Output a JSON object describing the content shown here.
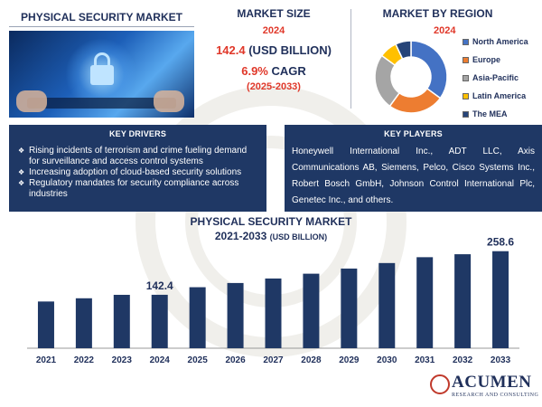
{
  "header": {
    "left_title": "PHYSICAL SECURITY MARKET",
    "market_size_title": "MARKET SIZE",
    "market_size_year": "2024",
    "market_size_value": "142.4",
    "market_size_unit": " (USD BILLION)",
    "cagr_value": "6.9%",
    "cagr_label": " CAGR",
    "cagr_period": "(2025-2033)",
    "region_title": "MARKET BY REGION",
    "region_year": "2024"
  },
  "region_pie": {
    "type": "pie",
    "labels": [
      "North America",
      "Europe",
      "Asia-Pacific",
      "Latin America",
      "The MEA"
    ],
    "values": [
      35,
      25,
      25,
      8,
      7
    ],
    "colors": [
      "#4472c4",
      "#ed7d31",
      "#a5a5a5",
      "#ffc000",
      "#264478"
    ]
  },
  "key_drivers": {
    "title": "KEY DRIVERS",
    "items": [
      "Rising incidents of terrorism and crime fueling demand for surveillance and access control systems",
      "Increasing adoption of cloud-based security solutions",
      "Regulatory mandates for security compliance across industries"
    ]
  },
  "key_players": {
    "title": "KEY PLAYERS",
    "text": "Honeywell International Inc., ADT LLC, Axis Communications AB, Siemens, Pelco, Cisco Systems Inc., Robert Bosch GmbH, Johnson Control International Plc, Genetec Inc., and others."
  },
  "chart_title": {
    "line1": "PHYSICAL SECURITY MARKET",
    "line2": "2021-2033 ",
    "unit": "(USD BILLION)"
  },
  "chart_data": {
    "type": "bar",
    "categories": [
      "2021",
      "2022",
      "2023",
      "2024",
      "2025",
      "2026",
      "2027",
      "2028",
      "2029",
      "2030",
      "2031",
      "2032",
      "2033"
    ],
    "values": [
      124.5,
      133.1,
      142.3,
      142.4,
      162.6,
      173.8,
      185.8,
      198.6,
      212.3,
      227.0,
      242.6,
      250.5,
      258.6
    ],
    "data_labels": {
      "3": "142.4",
      "12": "258.6"
    },
    "bar_color": "#1f3865"
  },
  "logo": {
    "word": "ACUMEN",
    "sub": "RESEARCH AND CONSULTING"
  }
}
